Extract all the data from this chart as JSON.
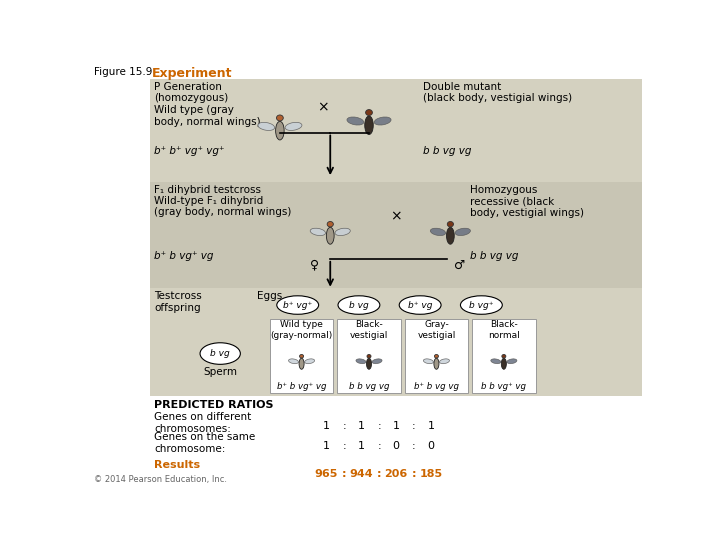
{
  "fig_label": "Figure 15.9",
  "title": "Experiment",
  "title_color": "#CC6600",
  "section_bg1": "#D4D1C0",
  "section_bg2": "#C8C5B4",
  "white": "#FFFFFF",
  "black": "#000000",
  "orange": "#CC6600",
  "gray_text": "#444444",
  "p_gen_header": "P Generation\n(homozygous)\nWild type (gray\nbody, normal wings)",
  "p_gen_genotype": "b⁺ b⁺ vg⁺ vg⁺",
  "double_mutant": "Double mutant\n(black body, vestigial wings)",
  "double_genotype": "b b vg vg",
  "f1_header": "F₁ dihybrid testcross",
  "f1_sub": "Wild-type F₁ dihybrid\n(gray body, normal wings)",
  "f1_genotype": "b⁺ b vg⁺ vg",
  "homo_rec": "Homozygous\nrecessive (black\nbody, vestigial wings)",
  "homo_genotype": "b b vg vg",
  "testcross_label": "Testcross\noffspring",
  "eggs_label": "Eggs",
  "egg1": "b⁺ vg⁺",
  "egg2": "b vg",
  "egg3": "b⁺ vg",
  "egg4": "b vg⁺",
  "sperm_label": "Sperm",
  "sperm_genotype": "b vg",
  "col1_header": "Wild type\n(gray-normal)",
  "col2_header": "Black-\nvestigial",
  "col3_header": "Gray-\nvestigial",
  "col4_header": "Black-\nnormal",
  "col1_genotype": "b⁺ b vg⁺ vg",
  "col2_genotype": "b b vg vg",
  "col3_genotype": "b⁺ b vg vg",
  "col4_genotype": "b b vg⁺ vg",
  "predicted_label": "PREDICTED RATIOS",
  "diff_chrom_label": "Genes on different\nchromosomes:",
  "same_chrom_label": "Genes on the same\nchromosome:",
  "results_label": "Results",
  "copyright": "© 2014 Pearson Education, Inc."
}
